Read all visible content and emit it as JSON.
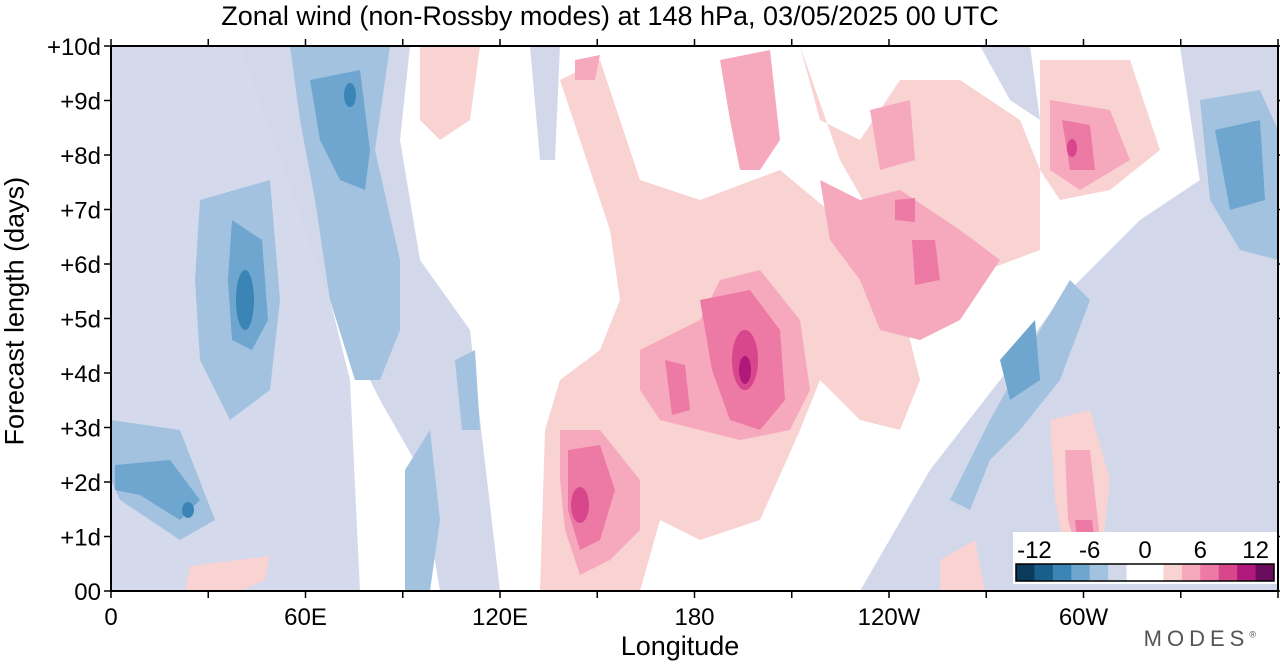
{
  "chart_data": {
    "type": "heatmap",
    "title": "Zonal wind (non-Rossby modes) at 148 hPa,  03/05/2025  00 UTC",
    "xlabel": "Longitude",
    "ylabel": "Forecast length (days)",
    "x_ticks": [
      "0",
      "60E",
      "120E",
      "180",
      "120W",
      "60W"
    ],
    "x_tick_values": [
      0,
      60,
      120,
      180,
      240,
      300
    ],
    "xlim": [
      0,
      360
    ],
    "y_ticks": [
      "00",
      "+1d",
      "+2d",
      "+3d",
      "+4d",
      "+5d",
      "+6d",
      "+7d",
      "+8d",
      "+9d",
      "+10d"
    ],
    "y_tick_values": [
      0,
      1,
      2,
      3,
      4,
      5,
      6,
      7,
      8,
      9,
      10
    ],
    "ylim": [
      0,
      10
    ],
    "colorbar": {
      "labels": [
        "-12",
        "-6",
        "0",
        "6",
        "12"
      ],
      "levels": [
        -14,
        -12,
        -10,
        -8,
        -6,
        -4,
        -2,
        0,
        2,
        4,
        6,
        8,
        10,
        12,
        14
      ],
      "colors": [
        "#0b3a5c",
        "#1a5f8c",
        "#3b84b6",
        "#6ea6cf",
        "#a3c2e0",
        "#d2d8ea",
        "#ffffff",
        "#ffffff",
        "#f9d2d2",
        "#f6a9bd",
        "#ec7aa5",
        "#d8468c",
        "#b0187a",
        "#6a0d5c"
      ],
      "position": "bottom-right"
    },
    "features": [
      {
        "lon": 40,
        "day": 5.2,
        "value": -8
      },
      {
        "lon": 42,
        "day": 6.0,
        "value": -7
      },
      {
        "lon": 72,
        "day": 8.5,
        "value": -7
      },
      {
        "lon": 12,
        "day": 2.0,
        "value": -6
      },
      {
        "lon": 282,
        "day": 3.2,
        "value": -6
      },
      {
        "lon": 356,
        "day": 7.8,
        "value": -5
      },
      {
        "lon": 145,
        "day": 1.5,
        "value": 10
      },
      {
        "lon": 155,
        "day": 1.9,
        "value": 8
      },
      {
        "lon": 190,
        "day": 4.3,
        "value": 12
      },
      {
        "lon": 200,
        "day": 4.8,
        "value": 8
      },
      {
        "lon": 238,
        "day": 6.0,
        "value": 8
      },
      {
        "lon": 233,
        "day": 7.0,
        "value": 7
      },
      {
        "lon": 178,
        "day": 3.8,
        "value": 8
      },
      {
        "lon": 158,
        "day": 9.5,
        "value": 4
      },
      {
        "lon": 223,
        "day": 8.5,
        "value": 5
      },
      {
        "lon": 297,
        "day": 8.2,
        "value": 9
      },
      {
        "lon": 300,
        "day": 1.0,
        "value": 8
      },
      {
        "lon": 98,
        "day": 3.0,
        "value": -4
      },
      {
        "lon": 212,
        "day": 6.5,
        "value": 4
      }
    ]
  },
  "branding": {
    "logo_text": "MODES"
  }
}
